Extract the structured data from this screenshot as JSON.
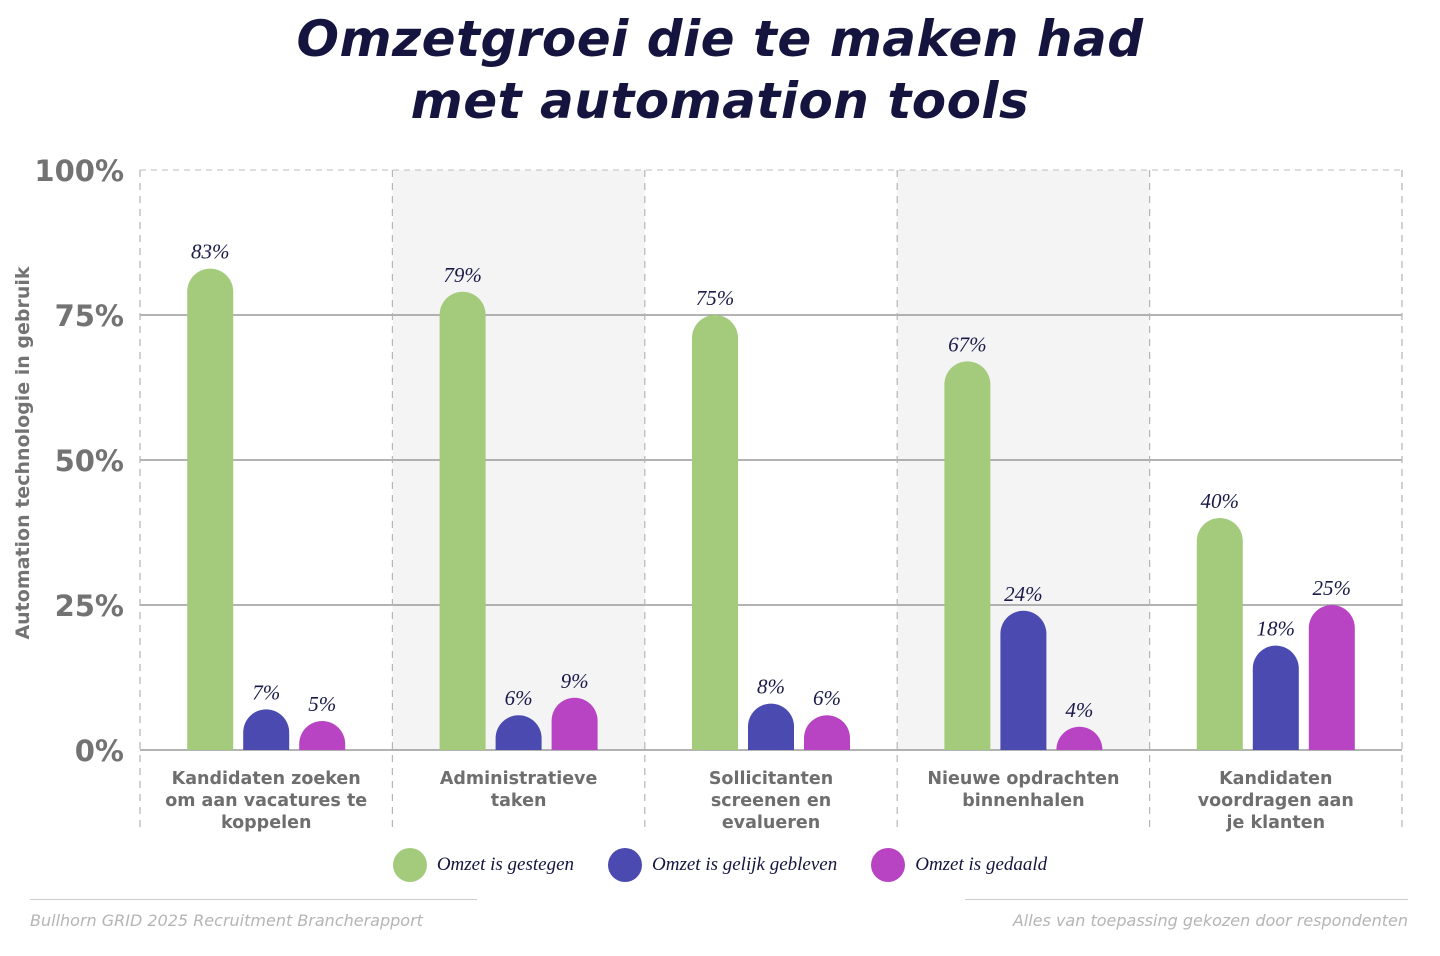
{
  "chart_data": {
    "type": "bar",
    "title": [
      "Omzetgroei die te maken had",
      "met automation tools"
    ],
    "ylabel": "Automation technologie in gebruik",
    "xlabel": "",
    "ylim": [
      0,
      100
    ],
    "yticks": [
      0,
      25,
      50,
      75,
      100
    ],
    "ytick_labels": [
      "0%",
      "25%",
      "50%",
      "75%",
      "100%"
    ],
    "grid": true,
    "legend_position": "bottom",
    "categories": [
      [
        "Kandidaten zoeken",
        "om aan vacatures te",
        "koppelen"
      ],
      [
        "Administratieve",
        "taken"
      ],
      [
        "Sollicitanten",
        "screenen en",
        "evalueren"
      ],
      [
        "Nieuwe opdrachten",
        "binnenhalen"
      ],
      [
        "Kandidaten",
        "voordragen aan",
        "je klanten"
      ]
    ],
    "series": [
      {
        "name": "Omzet is gestegen",
        "color": "#a3cb7b",
        "values": [
          83,
          79,
          75,
          67,
          40
        ],
        "labels": [
          "83%",
          "79%",
          "75%",
          "67%",
          "40%"
        ]
      },
      {
        "name": "Omzet is gelijk gebleven",
        "color": "#4a4ab0",
        "values": [
          7,
          6,
          8,
          24,
          18
        ],
        "labels": [
          "7%",
          "6%",
          "8%",
          "24%",
          "18%"
        ]
      },
      {
        "name": "Omzet is gedaald",
        "color": "#b844c4",
        "values": [
          5,
          9,
          6,
          4,
          25
        ],
        "labels": [
          "5%",
          "9%",
          "6%",
          "4%",
          "25%"
        ]
      }
    ]
  },
  "footer": {
    "source": "Bullhorn GRID 2025 Recruitment Brancherapport",
    "note": "Alles van toepassing gekozen door respondenten"
  }
}
